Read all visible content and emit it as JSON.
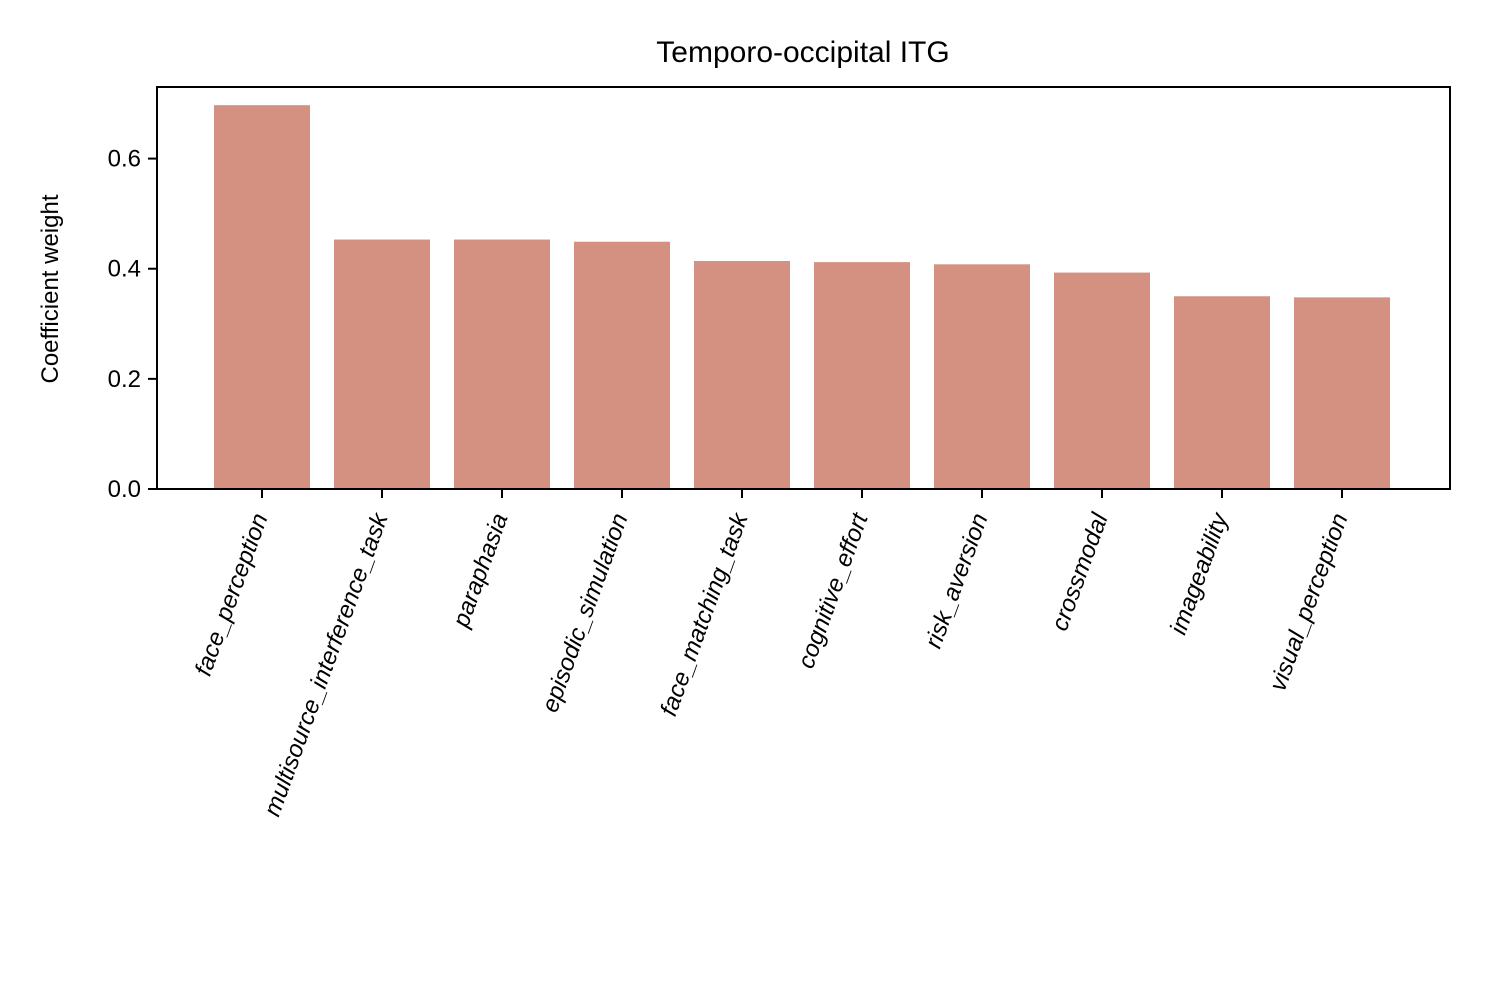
{
  "chart_data": {
    "type": "bar",
    "title": "Temporo-occipital ITG",
    "xlabel": "",
    "ylabel": "Coefficient weight",
    "categories": [
      "face_perception",
      "multisource_interference_task",
      "paraphasia",
      "episodic_simulation",
      "face_matching_task",
      "cognitive_effort",
      "risk_aversion",
      "crossmodal",
      "imageability",
      "visual_perception"
    ],
    "values": [
      0.697,
      0.453,
      0.453,
      0.449,
      0.414,
      0.412,
      0.408,
      0.393,
      0.35,
      0.348
    ],
    "ylim": [
      0,
      0.73
    ],
    "yticks": [
      0.0,
      0.2,
      0.4,
      0.6
    ],
    "ytick_labels": [
      "0.0",
      "0.2",
      "0.4",
      "0.6"
    ],
    "grid": false,
    "legend": "none",
    "bar_color": "#d49080",
    "xtick_rotation_deg": 70
  }
}
